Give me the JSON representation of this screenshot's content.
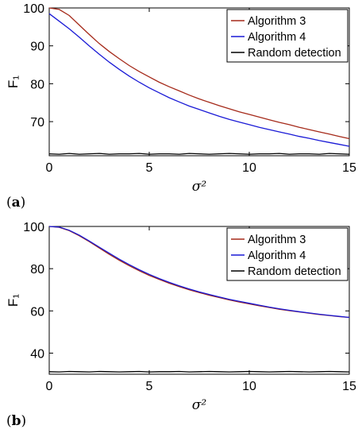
{
  "chart_data": [
    {
      "panel_label": "a",
      "type": "line",
      "xlabel": "σ²",
      "ylabel": "F₁",
      "xlim": [
        0,
        15
      ],
      "ylim": [
        61,
        100
      ],
      "xticks": [
        0,
        5,
        10,
        15
      ],
      "yticks": [
        70,
        80,
        90,
        100
      ],
      "legend_position": "top-right",
      "grid": false,
      "x": [
        0,
        0.5,
        1,
        1.5,
        2,
        2.5,
        3,
        3.5,
        4,
        4.5,
        5,
        5.5,
        6,
        6.5,
        7,
        7.5,
        8,
        8.5,
        9,
        9.5,
        10,
        10.5,
        11,
        11.5,
        12,
        12.5,
        13,
        13.5,
        14,
        14.5,
        15
      ],
      "series": [
        {
          "name": "Algorithm 3",
          "color": "#a52a1a",
          "values": [
            100,
            99.6,
            98,
            95.5,
            93,
            90.6,
            88.5,
            86.6,
            84.8,
            83.2,
            81.8,
            80.4,
            79.2,
            78.1,
            77,
            76,
            75.1,
            74.2,
            73.4,
            72.6,
            71.9,
            71.2,
            70.5,
            69.8,
            69.2,
            68.5,
            67.9,
            67.3,
            66.7,
            66.1,
            65.5
          ]
        },
        {
          "name": "Algorithm 4",
          "color": "#1a1ad6",
          "values": [
            98.5,
            96.5,
            94.5,
            92.3,
            90,
            87.8,
            85.7,
            83.8,
            82,
            80.4,
            78.9,
            77.6,
            76.3,
            75.2,
            74.1,
            73.2,
            72.3,
            71.4,
            70.6,
            69.9,
            69.2,
            68.5,
            67.9,
            67.3,
            66.7,
            66.1,
            65.6,
            65,
            64.5,
            64,
            63.5
          ]
        },
        {
          "name": "Random detection",
          "color": "#000000",
          "values": [
            61.5,
            61.4,
            61.6,
            61.4,
            61.5,
            61.6,
            61.4,
            61.5,
            61.5,
            61.6,
            61.4,
            61.5,
            61.5,
            61.4,
            61.6,
            61.5,
            61.4,
            61.5,
            61.6,
            61.5,
            61.4,
            61.5,
            61.5,
            61.6,
            61.4,
            61.5,
            61.5,
            61.4,
            61.6,
            61.5,
            61.4
          ]
        }
      ]
    },
    {
      "panel_label": "b",
      "type": "line",
      "xlabel": "σ²",
      "ylabel": "F₁",
      "xlim": [
        0,
        15
      ],
      "ylim": [
        30,
        100
      ],
      "xticks": [
        0,
        5,
        10,
        15
      ],
      "yticks": [
        40,
        60,
        80,
        100
      ],
      "legend_position": "top-right",
      "grid": false,
      "x": [
        0,
        0.5,
        1,
        1.5,
        2,
        2.5,
        3,
        3.5,
        4,
        4.5,
        5,
        5.5,
        6,
        6.5,
        7,
        7.5,
        8,
        8.5,
        9,
        9.5,
        10,
        10.5,
        11,
        11.5,
        12,
        12.5,
        13,
        13.5,
        14,
        14.5,
        15
      ],
      "series": [
        {
          "name": "Algorithm 3",
          "color": "#a52a1a",
          "values": [
            100,
            99.6,
            98,
            95.6,
            92.8,
            89.8,
            86.8,
            84,
            81.4,
            79,
            76.8,
            74.9,
            73.1,
            71.5,
            70,
            68.7,
            67.4,
            66.3,
            65.2,
            64.2,
            63.3,
            62.4,
            61.6,
            60.8,
            60.1,
            59.5,
            58.9,
            58.3,
            57.8,
            57.3,
            56.9
          ]
        },
        {
          "name": "Algorithm 4",
          "color": "#1a1ad6",
          "values": [
            100,
            99.7,
            98.2,
            95.9,
            93.1,
            90.2,
            87.3,
            84.5,
            81.9,
            79.5,
            77.3,
            75.3,
            73.5,
            71.9,
            70.4,
            69,
            67.8,
            66.6,
            65.5,
            64.5,
            63.6,
            62.7,
            61.8,
            61,
            60.3,
            59.6,
            59,
            58.4,
            57.9,
            57.4,
            56.9
          ]
        },
        {
          "name": "Random detection",
          "color": "#000000",
          "values": [
            31.2,
            31.1,
            31.3,
            31.2,
            31.1,
            31.3,
            31.2,
            31.1,
            31.2,
            31.3,
            31.1,
            31.2,
            31.2,
            31.3,
            31.1,
            31.2,
            31.3,
            31.2,
            31.1,
            31.2,
            31.3,
            31.2,
            31.1,
            31.2,
            31.3,
            31.2,
            31.1,
            31.2,
            31.3,
            31.2,
            31.1
          ]
        }
      ]
    }
  ]
}
